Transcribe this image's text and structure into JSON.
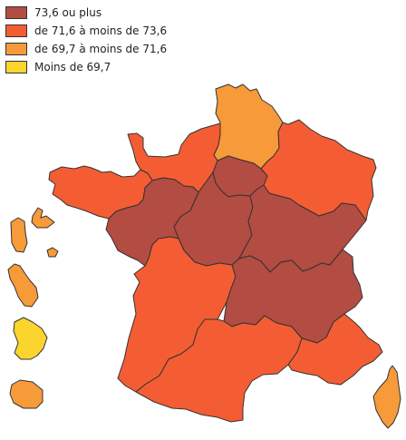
{
  "legend": {
    "items": [
      {
        "label": "73,6 ou plus",
        "color": "#b34c42"
      },
      {
        "label": "de 71,6 à moins de 73,6",
        "color": "#f45d33"
      },
      {
        "label": "de 69,7 à moins de 71,6",
        "color": "#f69a3a"
      },
      {
        "label": "Moins de 69,7",
        "color": "#fbd42d"
      }
    ]
  },
  "regions": [
    {
      "name": "Hauts-de-France",
      "class": 2
    },
    {
      "name": "Normandie",
      "class": 1
    },
    {
      "name": "Bretagne",
      "class": 1
    },
    {
      "name": "Grand Est",
      "class": 1
    },
    {
      "name": "Île-de-France",
      "class": 0
    },
    {
      "name": "Centre-Val de Loire",
      "class": 0
    },
    {
      "name": "Pays de la Loire",
      "class": 0
    },
    {
      "name": "Bourgogne-Franche-Comté",
      "class": 0
    },
    {
      "name": "Nouvelle-Aquitaine",
      "class": 1
    },
    {
      "name": "Auvergne-Rhône-Alpes",
      "class": 0
    },
    {
      "name": "Occitanie",
      "class": 1
    },
    {
      "name": "Provence-Alpes-Côte d'Azur",
      "class": 1
    },
    {
      "name": "Corse",
      "class": 2
    },
    {
      "name": "Guadeloupe",
      "class": 2
    },
    {
      "name": "Martinique",
      "class": 2
    },
    {
      "name": "Guyane",
      "class": 3
    },
    {
      "name": "La Réunion",
      "class": 2
    }
  ]
}
